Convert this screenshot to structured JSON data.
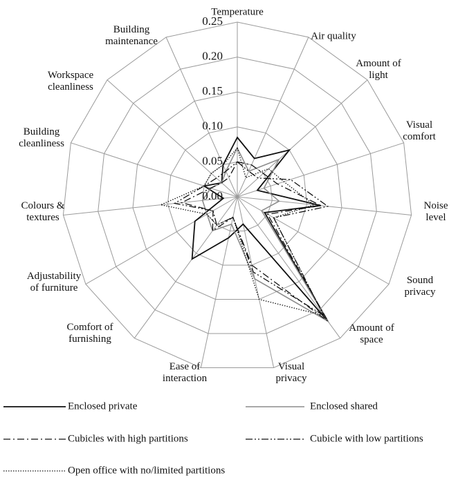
{
  "chart_data": {
    "type": "radar",
    "categories": [
      "Temperature",
      "Air quality",
      "Amount of\nlight",
      "Visual\ncomfort",
      "Noise level",
      "Sound\nprivacy",
      "Amount of\nspace",
      "Visual\nprivacy",
      "Ease of\ninteraction",
      "Comfort of\nfurnishing",
      "Adjustability\nof furniture",
      "Colours &\ntextures",
      "Building\ncleanliness",
      "Workspace\ncleanliness",
      "Building\nmaintenance"
    ],
    "ylim": [
      0,
      0.25
    ],
    "yticks": [
      {
        "value": 0,
        "label": "0.00"
      },
      0.05,
      {
        "value": 0.1,
        "label": "0.10"
      },
      0.15,
      {
        "value": 0.2,
        "label": "0.20"
      },
      0.25
    ],
    "grid": true,
    "series": [
      {
        "name": "Enclosed private",
        "color": "#111111",
        "dash": "none",
        "width": 1.8,
        "values": [
          0.085,
          0.06,
          0.1,
          0.03,
          0.12,
          0.045,
          0.22,
          0.04,
          0.06,
          0.11,
          0.07,
          0.02,
          0.05,
          0.03,
          0.05
        ]
      },
      {
        "name": "Enclosed shared",
        "color": "#8c8c8c",
        "dash": "none",
        "width": 1.6,
        "values": [
          0.07,
          0.04,
          0.08,
          0.04,
          0.06,
          0.04,
          0.22,
          0.12,
          0.04,
          0.06,
          0.05,
          0.05,
          0.04,
          0.03,
          0.04
        ]
      },
      {
        "name": "Cubicles with high partitions",
        "color": "#111111",
        "dash": "10 4 2 4",
        "width": 1.3,
        "values": [
          0.05,
          0.05,
          0.05,
          0.06,
          0.12,
          0.05,
          0.22,
          0.1,
          0.03,
          0.06,
          0.04,
          0.08,
          0.04,
          0.03,
          0.03
        ]
      },
      {
        "name": "Cubicle with low partitions",
        "color": "#111111",
        "dash": "10 3 2 3 2 3",
        "width": 1.3,
        "values": [
          0.05,
          0.04,
          0.04,
          0.08,
          0.13,
          0.06,
          0.21,
          0.11,
          0.03,
          0.05,
          0.04,
          0.09,
          0.05,
          0.04,
          0.04
        ]
      },
      {
        "name": "Open office with no/limited partitions",
        "color": "#111111",
        "dash": "1.5 2",
        "width": 1.3,
        "values": [
          0.07,
          0.03,
          0.06,
          0.07,
          0.11,
          0.06,
          0.21,
          0.15,
          0.03,
          0.05,
          0.05,
          0.11,
          0.05,
          0.05,
          0.05
        ]
      }
    ]
  }
}
